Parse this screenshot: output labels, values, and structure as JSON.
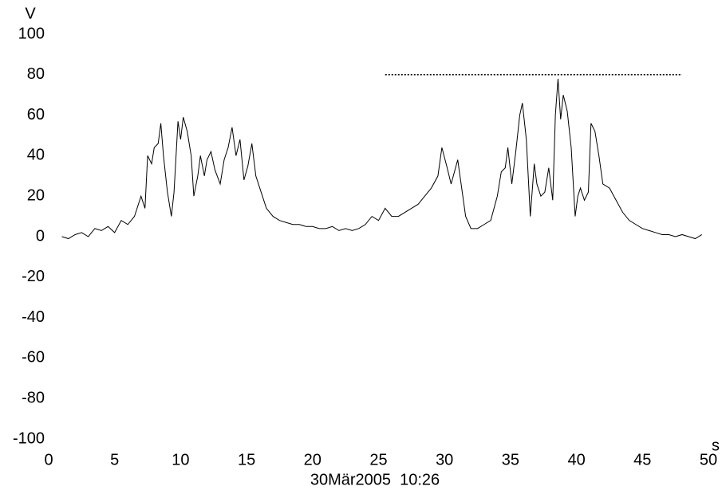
{
  "chart_data": {
    "type": "line",
    "y_label": "V",
    "x_label": "s",
    "footer": "30Mär2005  10:26",
    "x": [
      1.0,
      1.5,
      2.0,
      2.5,
      3.0,
      3.5,
      4.0,
      4.5,
      5.0,
      5.5,
      6.0,
      6.5,
      7.0,
      7.3,
      7.5,
      7.8,
      8.0,
      8.3,
      8.5,
      8.7,
      9.0,
      9.3,
      9.5,
      9.8,
      10.0,
      10.2,
      10.5,
      10.8,
      11.0,
      11.3,
      11.5,
      11.8,
      12.0,
      12.3,
      12.6,
      13.0,
      13.3,
      13.6,
      13.9,
      14.2,
      14.5,
      14.8,
      15.1,
      15.4,
      15.7,
      16.0,
      16.5,
      17.0,
      17.5,
      18.0,
      18.5,
      19.0,
      19.5,
      20.0,
      20.5,
      21.0,
      21.5,
      22.0,
      22.5,
      23.0,
      23.5,
      24.0,
      24.5,
      25.0,
      25.5,
      26.0,
      26.5,
      27.0,
      27.5,
      28.0,
      28.5,
      29.0,
      29.5,
      29.8,
      30.2,
      30.5,
      31.0,
      31.3,
      31.6,
      32.0,
      32.5,
      33.0,
      33.5,
      34.0,
      34.3,
      34.6,
      34.8,
      35.1,
      35.4,
      35.7,
      35.9,
      36.2,
      36.5,
      36.8,
      37.0,
      37.3,
      37.6,
      37.9,
      38.2,
      38.4,
      38.6,
      38.8,
      39.0,
      39.3,
      39.6,
      39.9,
      40.1,
      40.3,
      40.6,
      40.9,
      41.1,
      41.4,
      41.7,
      42.0,
      42.5,
      43.0,
      43.5,
      44.0,
      44.5,
      45.0,
      45.5,
      46.0,
      46.5,
      47.0,
      47.5,
      48.0,
      48.5,
      49.0,
      49.5
    ],
    "series": [
      {
        "color": "#000000",
        "values": [
          0,
          -1,
          1,
          2,
          0,
          4,
          3,
          5,
          2,
          8,
          6,
          10,
          20,
          14,
          40,
          36,
          44,
          46,
          56,
          40,
          22,
          10,
          22,
          57,
          48,
          59,
          52,
          40,
          20,
          30,
          40,
          30,
          38,
          42,
          33,
          26,
          38,
          44,
          54,
          40,
          48,
          28,
          35,
          46,
          30,
          24,
          14,
          10,
          8,
          7,
          6,
          6,
          5,
          5,
          4,
          4,
          5,
          3,
          4,
          3,
          4,
          6,
          10,
          8,
          14,
          10,
          10,
          12,
          14,
          16,
          20,
          24,
          30,
          44,
          34,
          26,
          38,
          24,
          10,
          4,
          4,
          6,
          8,
          20,
          32,
          34,
          44,
          26,
          42,
          60,
          66,
          48,
          10,
          36,
          26,
          20,
          22,
          34,
          18,
          60,
          78,
          58,
          70,
          62,
          44,
          10,
          20,
          24,
          18,
          22,
          56,
          52,
          40,
          26,
          24,
          18,
          12,
          8,
          6,
          4,
          3,
          2,
          1,
          1,
          0,
          1,
          0,
          -1,
          1
        ]
      }
    ],
    "reference_line": {
      "y": 80,
      "x": [
        25.5,
        48
      ],
      "color": "#000000"
    },
    "xlim": [
      0,
      50
    ],
    "xticks": [
      0,
      5,
      10,
      15,
      20,
      25,
      30,
      35,
      40,
      45,
      50
    ],
    "ylim": [
      -100,
      100
    ],
    "yticks": [
      -100,
      -80,
      -60,
      -40,
      -20,
      0,
      20,
      40,
      60,
      80,
      100
    ]
  }
}
